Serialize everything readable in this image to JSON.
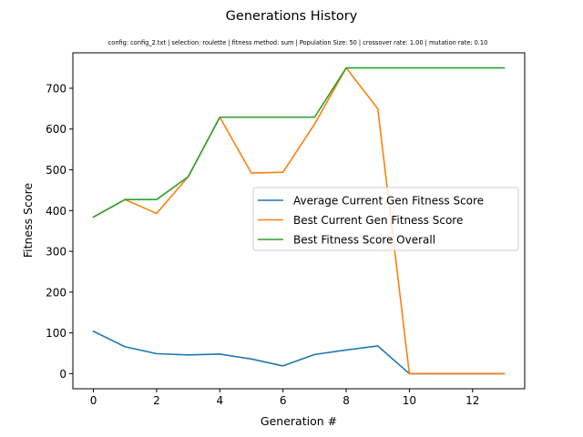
{
  "chart_data": {
    "type": "line",
    "title": "Generations History",
    "subtitle": "config: config_2.txt | selection: roulette | fitness method: sum | Population Size: 50 | crossover rate: 1.00 | mutation rate: 0.10",
    "xlabel": "Generation #",
    "ylabel": "Fitness Score",
    "x": [
      0,
      1,
      2,
      3,
      4,
      5,
      6,
      7,
      8,
      9,
      10,
      11,
      12,
      13
    ],
    "xlim": [
      -0.65,
      13.65
    ],
    "ylim": [
      -37,
      787
    ],
    "xticks": [
      0,
      2,
      4,
      6,
      8,
      10,
      12
    ],
    "yticks": [
      0,
      100,
      200,
      300,
      400,
      500,
      600,
      700
    ],
    "grid": false,
    "legend_position": "center-right",
    "series": [
      {
        "name": "Average Current Gen Fitness Score",
        "color": "#1f77b4",
        "values": [
          104,
          66,
          49,
          46,
          48,
          36,
          19,
          47,
          58,
          68,
          0,
          0,
          0,
          0
        ]
      },
      {
        "name": "Best Current Gen Fitness Score",
        "color": "#ff7f0e",
        "values": [
          384,
          427,
          393,
          483,
          629,
          492,
          494,
          612,
          750,
          650,
          0,
          0,
          0,
          0
        ]
      },
      {
        "name": "Best Fitness Score Overall",
        "color": "#2ca02c",
        "values": [
          384,
          427,
          427,
          483,
          629,
          629,
          629,
          629,
          750,
          750,
          750,
          750,
          750,
          750
        ]
      }
    ]
  }
}
